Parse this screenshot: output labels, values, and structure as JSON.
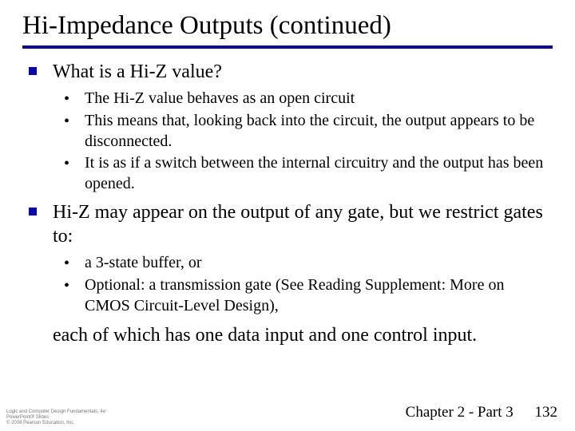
{
  "title": "Hi-Impedance Outputs (continued)",
  "section1": {
    "heading": "What is a Hi-Z value?",
    "items": [
      "The Hi-Z value behaves as an open circuit",
      "This means that, looking back into the circuit, the output appears to be disconnected.",
      "It is as if a switch between the internal circuitry and the output has been opened."
    ]
  },
  "section2": {
    "heading": "Hi-Z may appear on the output of any gate, but we restrict gates to:",
    "items": [
      "a 3-state buffer,  or",
      "Optional: a transmission gate (See Reading Supplement: More  on CMOS Circuit-Level Design),"
    ],
    "trailing": "each of which has one data input and one control input."
  },
  "footer": {
    "credit_line1": "Logic and Computer Design Fundamentals, 4e",
    "credit_line2": "PowerPoint® Slides",
    "credit_line3": "© 2008 Pearson Education, Inc.",
    "chapter": "Chapter 2 - Part 3",
    "page": "132"
  },
  "colors": {
    "accent": "#0807ab",
    "text": "#000000",
    "background": "#ffffff",
    "footer_text": "#777777"
  }
}
